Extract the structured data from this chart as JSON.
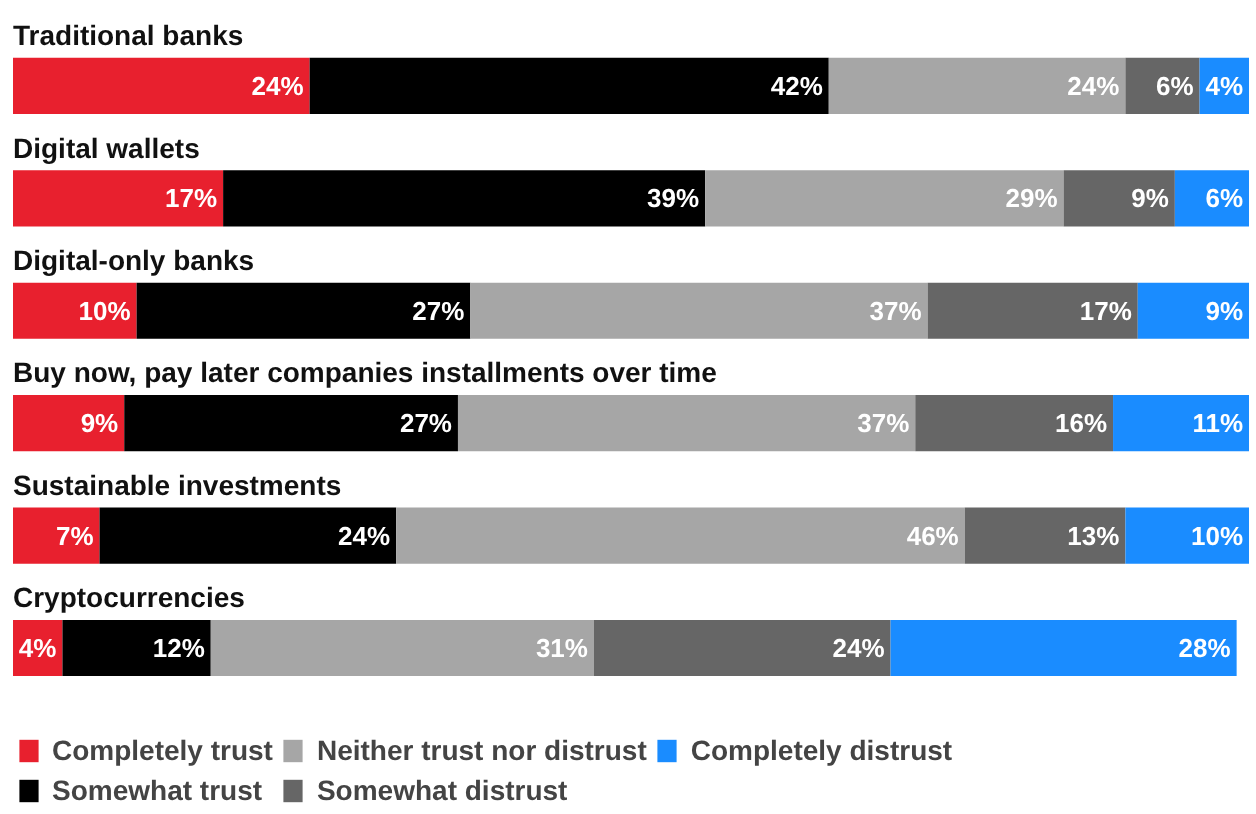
{
  "chart_data": {
    "type": "bar",
    "orientation": "horizontal",
    "stacked": true,
    "xlim": [
      0,
      100
    ],
    "tick_labels": false,
    "grid": false,
    "legend": "bottom",
    "categories": [
      "Traditional banks",
      "Digital wallets",
      "Digital-only banks",
      "Buy now, pay later companies installments over time",
      "Sustainable investments",
      "Cryptocurrencies"
    ],
    "series": [
      {
        "name": "Completely trust",
        "color": "#e8202e",
        "values": [
          24,
          17,
          10,
          9,
          7,
          4
        ],
        "value_labels": [
          "24%",
          "17%",
          "10%",
          "9%",
          "7%",
          "4%"
        ]
      },
      {
        "name": "Somewhat trust",
        "color": "#000000",
        "values": [
          42,
          39,
          27,
          27,
          24,
          12
        ],
        "value_labels": [
          "42%",
          "39%",
          "27%",
          "27%",
          "24%",
          "12%"
        ]
      },
      {
        "name": "Neither trust nor distrust",
        "color": "#a6a6a6",
        "values": [
          24,
          29,
          37,
          37,
          46,
          31
        ],
        "value_labels": [
          "24%",
          "29%",
          "37%",
          "37%",
          "46%",
          "31%"
        ]
      },
      {
        "name": "Somewhat distrust",
        "color": "#666666",
        "values": [
          6,
          9,
          17,
          16,
          13,
          24
        ],
        "value_labels": [
          "6%",
          "9%",
          "17%",
          "16%",
          "13%",
          "24%"
        ]
      },
      {
        "name": "Completely distrust",
        "color": "#1a8cff",
        "values": [
          4,
          6,
          9,
          11,
          10,
          28
        ],
        "value_labels": [
          "4%",
          "6%",
          "9%",
          "11%",
          "10%",
          "28%"
        ]
      }
    ]
  }
}
